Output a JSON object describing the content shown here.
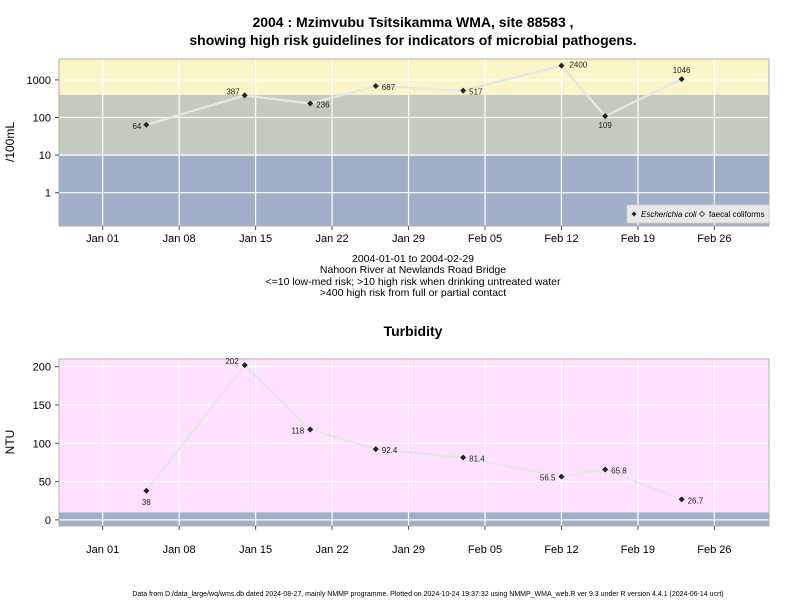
{
  "header": {
    "title_line1": "2004 : Mzimvubu Tsitsikamma WMA, site 88583 ,",
    "title_line2": "showing high risk guidelines for indicators of microbial pathogens."
  },
  "subtitle": {
    "line1": "2004-01-01 to 2004-02-29",
    "line2": "Nahoon River at Newlands Road Bridge",
    "line3": "<=10 low-med risk; >10 high risk when drinking untreated water",
    "line4": ">400 high risk from full or partial contact"
  },
  "footer": {
    "text": "Data from D:/data_large/wq/wms.db dated 2024-08-27, mainly NMMP programme. Plotted on 2024-10-24 19:37:32 using NMMP_WMA_web.R ver 9.3 under R version 4.4.1 (2024-06-14 ucrt)"
  },
  "colors": {
    "band_high_contact": "#fbf5c8",
    "band_high_drink": "#c3cbbf",
    "band_low": "#a0b0c8",
    "turbidity_bg": "#ffe0ff",
    "turbidity_band": "#a0b0c8",
    "line": "#e6e6e6",
    "marker": "#222222"
  },
  "chart_data": [
    {
      "type": "line",
      "title": "",
      "xlabel": "",
      "ylabel": "/100mL",
      "yscale": "log",
      "ylim": [
        0.13,
        3600
      ],
      "yticks": [
        1,
        10,
        100,
        1000
      ],
      "ytick_labels": [
        "1",
        "10",
        "100",
        "1000"
      ],
      "xlim": [
        "2003-12-28",
        "2004-03-02"
      ],
      "xticks": [
        "2004-01-01",
        "2004-01-08",
        "2004-01-15",
        "2004-01-22",
        "2004-01-29",
        "2004-02-05",
        "2004-02-12",
        "2004-02-19",
        "2004-02-26"
      ],
      "xtick_labels": [
        "Jan 01",
        "Jan 08",
        "Jan 15",
        "Jan 22",
        "Jan 29",
        "Feb 05",
        "Feb 12",
        "Feb 19",
        "Feb 26"
      ],
      "grid": true,
      "bands": [
        {
          "from": 400,
          "to": 3600,
          "color": "#fbf5c8"
        },
        {
          "from": 10,
          "to": 400,
          "color": "#c3cbbf"
        },
        {
          "from": 0.13,
          "to": 10,
          "color": "#a0b0c8"
        }
      ],
      "legend": {
        "placement": "bottom-right",
        "entries": [
          {
            "label": "Escherichia coli",
            "marker": "filled"
          },
          {
            "label": "faecal coliforms",
            "marker": "open"
          }
        ]
      },
      "series": [
        {
          "name": "Escherichia coli",
          "x": [
            "2004-01-05",
            "2004-01-14",
            "2004-01-20",
            "2004-01-26",
            "2004-02-03",
            "2004-02-12",
            "2004-02-16",
            "2004-02-23"
          ],
          "values": [
            64,
            387,
            236,
            687,
            517,
            2400,
            109,
            1046
          ],
          "labels": [
            "64",
            "387",
            "236",
            "687",
            "517",
            "2400",
            "109",
            "1046"
          ]
        }
      ]
    },
    {
      "type": "line",
      "title": "Turbidity",
      "xlabel": "",
      "ylabel": "NTU",
      "ylim": [
        -8,
        210
      ],
      "yticks": [
        0,
        50,
        100,
        150,
        200
      ],
      "ytick_labels": [
        "0",
        "50",
        "100",
        "150",
        "200"
      ],
      "xlim": [
        "2003-12-28",
        "2004-03-02"
      ],
      "xticks": [
        "2004-01-01",
        "2004-01-08",
        "2004-01-15",
        "2004-01-22",
        "2004-01-29",
        "2004-02-05",
        "2004-02-12",
        "2004-02-19",
        "2004-02-26"
      ],
      "xtick_labels": [
        "Jan 01",
        "Jan 08",
        "Jan 15",
        "Jan 22",
        "Jan 29",
        "Feb 05",
        "Feb 12",
        "Feb 19",
        "Feb 26"
      ],
      "grid": true,
      "bands": [
        {
          "from": -8,
          "to": 10,
          "color": "#a0b0c8"
        },
        {
          "from": 10,
          "to": 210,
          "color": "#ffe0ff"
        }
      ],
      "series": [
        {
          "name": "",
          "x": [
            "2004-01-05",
            "2004-01-14",
            "2004-01-20",
            "2004-01-26",
            "2004-02-03",
            "2004-02-12",
            "2004-02-16",
            "2004-02-23"
          ],
          "values": [
            38,
            202,
            118,
            92.4,
            81.4,
            56.5,
            65.8,
            26.7
          ],
          "labels": [
            "38",
            "202",
            "118",
            "92.4",
            "81.4",
            "56.5",
            "65.8",
            "26.7"
          ]
        }
      ]
    }
  ]
}
